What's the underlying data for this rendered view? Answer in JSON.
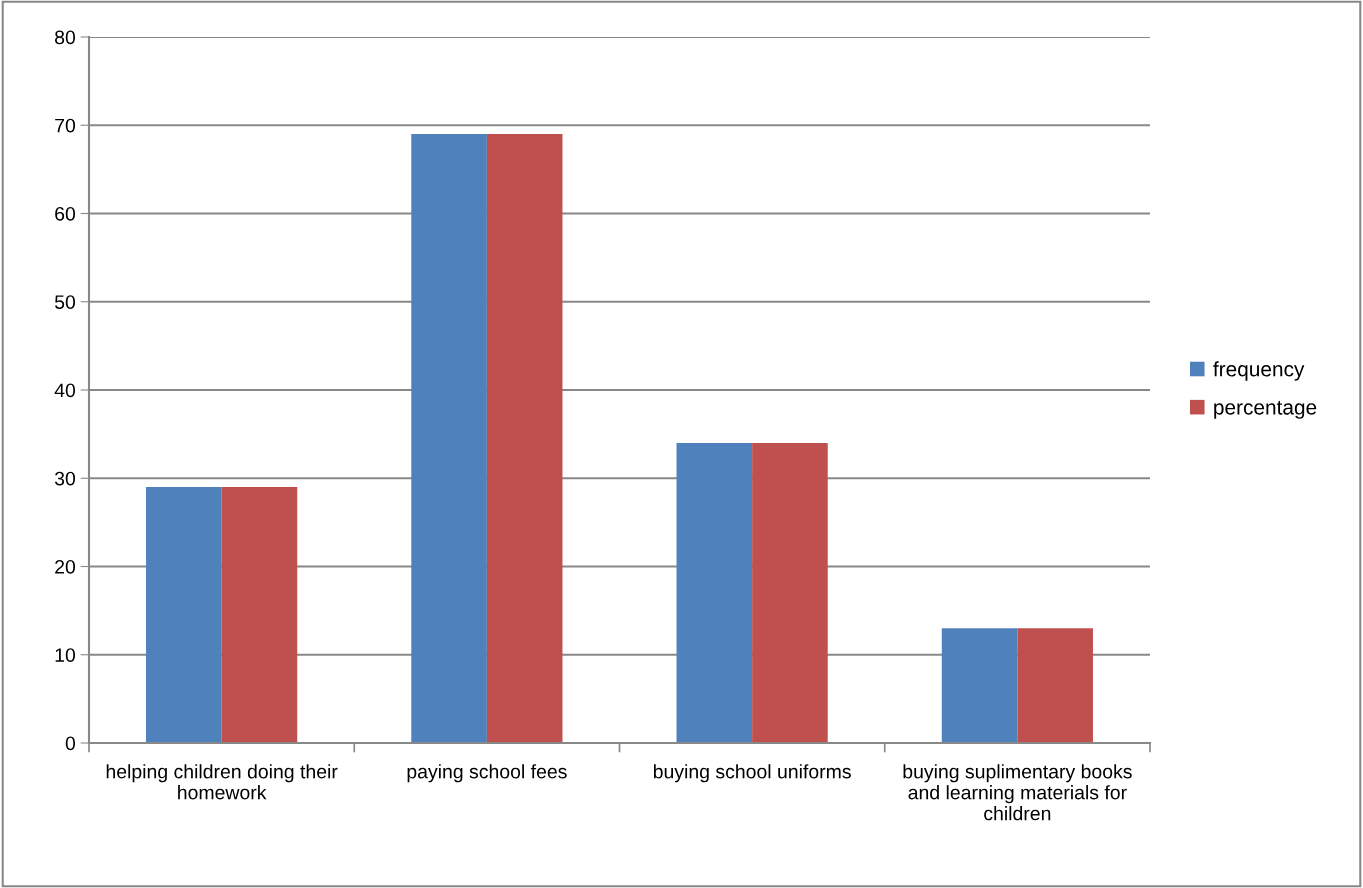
{
  "chart_data": {
    "type": "bar",
    "categories": [
      "helping children doing their homework",
      "paying school fees",
      "buying school uniforms",
      "buying suplimentary books and learning materials for children"
    ],
    "series": [
      {
        "name": "frequency",
        "color": "#4f81bd",
        "values": [
          29,
          69,
          34,
          13
        ]
      },
      {
        "name": "percentage",
        "color": "#c0504d",
        "values": [
          29,
          69,
          34,
          13
        ]
      }
    ],
    "ylim": [
      0,
      80
    ],
    "yticks": [
      0,
      10,
      20,
      30,
      40,
      50,
      60,
      70,
      80
    ],
    "grid": "y",
    "legend": "right"
  }
}
